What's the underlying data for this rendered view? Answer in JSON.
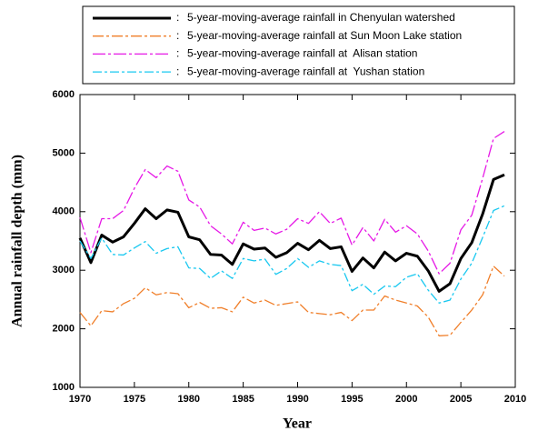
{
  "chart_data": {
    "type": "line",
    "x_label": "Year",
    "y_label": "Annual rainfall depth (mm)",
    "x": [
      1970,
      1971,
      1972,
      1973,
      1974,
      1975,
      1976,
      1977,
      1978,
      1979,
      1980,
      1981,
      1982,
      1983,
      1984,
      1985,
      1986,
      1987,
      1988,
      1989,
      1990,
      1991,
      1992,
      1993,
      1994,
      1995,
      1996,
      1997,
      1998,
      1999,
      2000,
      2001,
      2002,
      2003,
      2004,
      2005,
      2006,
      2007,
      2008,
      2009
    ],
    "series": [
      {
        "name": "5-year-moving-average rainfall in Chenyulan watershed",
        "color": "#000000",
        "width": 3,
        "dash": "none",
        "values": [
          3550,
          3130,
          3600,
          3480,
          3570,
          3800,
          4050,
          3880,
          4030,
          3990,
          3570,
          3520,
          3270,
          3260,
          3100,
          3450,
          3360,
          3380,
          3220,
          3300,
          3460,
          3350,
          3510,
          3370,
          3400,
          2980,
          3210,
          3040,
          3310,
          3160,
          3290,
          3240,
          2990,
          2640,
          2770,
          3200,
          3470,
          3960,
          4550,
          4630
        ]
      },
      {
        "name": "5-year-moving-average rainfall at Sun Moon Lake station",
        "color": "#f07f2a",
        "width": 1.3,
        "dash": "12,3,3,3",
        "values": [
          2280,
          2050,
          2310,
          2290,
          2430,
          2520,
          2700,
          2580,
          2620,
          2600,
          2360,
          2450,
          2350,
          2360,
          2290,
          2540,
          2440,
          2490,
          2400,
          2430,
          2460,
          2280,
          2260,
          2240,
          2280,
          2140,
          2320,
          2320,
          2560,
          2490,
          2440,
          2390,
          2200,
          1880,
          1890,
          2110,
          2320,
          2580,
          3070,
          2900
        ]
      },
      {
        "name": "5-year-moving-average rainfall at  Alisan station",
        "color": "#e619e6",
        "width": 1.3,
        "dash": "14,3,3,3",
        "values": [
          3900,
          3300,
          3880,
          3880,
          4020,
          4400,
          4720,
          4580,
          4780,
          4690,
          4200,
          4080,
          3760,
          3620,
          3450,
          3820,
          3680,
          3720,
          3620,
          3700,
          3880,
          3800,
          4000,
          3800,
          3890,
          3430,
          3730,
          3500,
          3870,
          3650,
          3760,
          3620,
          3330,
          2940,
          3120,
          3690,
          3940,
          4570,
          5250,
          5370
        ]
      },
      {
        "name": "5-year-moving-average rainfall at  Yushan station",
        "color": "#19c8f0",
        "width": 1.3,
        "dash": "10,3,3,3",
        "values": [
          3500,
          3200,
          3550,
          3270,
          3260,
          3380,
          3490,
          3290,
          3370,
          3400,
          3040,
          3030,
          2860,
          2990,
          2860,
          3200,
          3160,
          3190,
          2930,
          3030,
          3200,
          3050,
          3160,
          3100,
          3080,
          2650,
          2760,
          2590,
          2730,
          2720,
          2880,
          2940,
          2660,
          2440,
          2490,
          2850,
          3120,
          3560,
          4020,
          4100
        ]
      }
    ],
    "xlim": [
      1970,
      2010
    ],
    "xticks": [
      1970,
      1975,
      1980,
      1985,
      1990,
      1995,
      2000,
      2005,
      2010
    ],
    "ylim": [
      1000,
      6000
    ],
    "yticks": [
      1000,
      2000,
      3000,
      4000,
      5000,
      6000
    ],
    "legend": "top"
  }
}
